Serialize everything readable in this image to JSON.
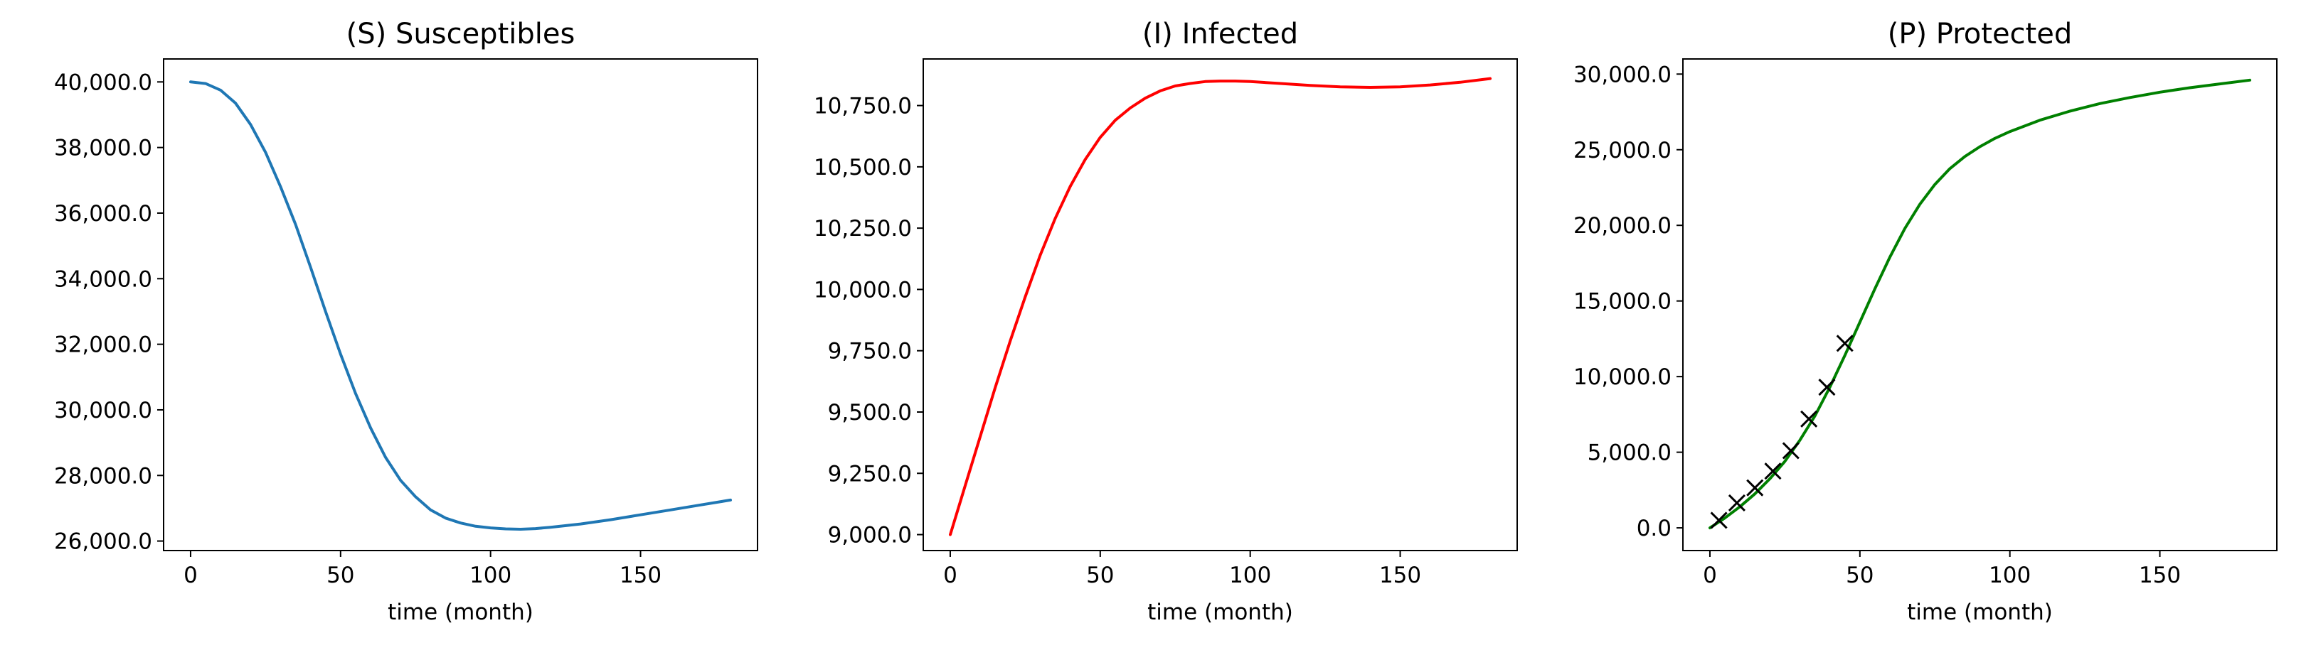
{
  "chart_data": [
    {
      "type": "line",
      "title": "(S) Susceptibles",
      "xlabel": "time (month)",
      "ylabel": "",
      "xlim": [
        -9,
        189
      ],
      "ylim": [
        25710,
        40700
      ],
      "xticks": [
        0,
        50,
        100,
        150
      ],
      "xtick_labels": [
        "0",
        "50",
        "100",
        "150"
      ],
      "yticks": [
        26000,
        28000,
        30000,
        32000,
        34000,
        36000,
        38000,
        40000
      ],
      "ytick_labels": [
        "26,000.0",
        "28,000.0",
        "30,000.0",
        "32,000.0",
        "34,000.0",
        "36,000.0",
        "38,000.0",
        "40,000.0"
      ],
      "grid": false,
      "series": [
        {
          "color": "#1f77b4",
          "x": [
            0,
            5,
            10,
            15,
            20,
            25,
            30,
            35,
            40,
            45,
            50,
            55,
            60,
            65,
            70,
            75,
            80,
            85,
            90,
            95,
            100,
            105,
            110,
            115,
            120,
            130,
            140,
            150,
            160,
            170,
            180
          ],
          "y": [
            40000,
            39950,
            39750,
            39350,
            38700,
            37850,
            36800,
            35650,
            34350,
            33000,
            31700,
            30500,
            29450,
            28550,
            27850,
            27350,
            26950,
            26700,
            26550,
            26450,
            26400,
            26370,
            26360,
            26380,
            26420,
            26520,
            26650,
            26800,
            26950,
            27100,
            27250
          ]
        }
      ]
    },
    {
      "type": "line",
      "title": "(I) Infected",
      "xlabel": "time (month)",
      "ylabel": "",
      "xlim": [
        -9,
        189
      ],
      "ylim": [
        8935,
        10940
      ],
      "xticks": [
        0,
        50,
        100,
        150
      ],
      "xtick_labels": [
        "0",
        "50",
        "100",
        "150"
      ],
      "yticks": [
        9000,
        9250,
        9500,
        9750,
        10000,
        10250,
        10500,
        10750
      ],
      "ytick_labels": [
        "9,000.0",
        "9,250.0",
        "9,500.0",
        "9,750.0",
        "10,000.0",
        "10,250.0",
        "10,500.0",
        "10,750.0"
      ],
      "grid": false,
      "series": [
        {
          "color": "#ff0000",
          "x": [
            0,
            5,
            10,
            15,
            20,
            25,
            30,
            35,
            40,
            45,
            50,
            55,
            60,
            65,
            70,
            75,
            80,
            85,
            90,
            95,
            100,
            110,
            120,
            130,
            140,
            150,
            160,
            170,
            180
          ],
          "y": [
            9000,
            9200,
            9400,
            9600,
            9790,
            9970,
            10140,
            10290,
            10420,
            10530,
            10620,
            10690,
            10740,
            10780,
            10810,
            10830,
            10840,
            10848,
            10850,
            10850,
            10848,
            10840,
            10832,
            10826,
            10824,
            10826,
            10834,
            10845,
            10860
          ]
        }
      ]
    },
    {
      "type": "line",
      "title": "(P) Protected",
      "xlabel": "time (month)",
      "ylabel": "",
      "xlim": [
        -9,
        189
      ],
      "ylim": [
        -1500,
        31000
      ],
      "xticks": [
        0,
        50,
        100,
        150
      ],
      "xtick_labels": [
        "0",
        "50",
        "100",
        "150"
      ],
      "yticks": [
        0,
        5000,
        10000,
        15000,
        20000,
        25000,
        30000
      ],
      "ytick_labels": [
        "0.0",
        "5,000.0",
        "10,000.0",
        "15,000.0",
        "20,000.0",
        "25,000.0",
        "30,000.0"
      ],
      "grid": false,
      "series": [
        {
          "color": "#008000",
          "x": [
            0,
            5,
            10,
            15,
            20,
            25,
            30,
            35,
            40,
            45,
            50,
            55,
            60,
            65,
            70,
            75,
            80,
            85,
            90,
            95,
            100,
            110,
            120,
            130,
            140,
            150,
            160,
            170,
            180
          ],
          "y": [
            0,
            650,
            1400,
            2250,
            3250,
            4400,
            5800,
            7400,
            9300,
            11400,
            13600,
            15800,
            17900,
            19800,
            21400,
            22700,
            23750,
            24550,
            25200,
            25750,
            26200,
            26950,
            27550,
            28050,
            28450,
            28800,
            29100,
            29350,
            29600
          ]
        }
      ],
      "markers": {
        "color": "#000000",
        "shape": "x",
        "x": [
          3,
          9,
          15,
          21,
          27,
          33,
          39,
          45
        ],
        "y": [
          500,
          1650,
          2650,
          3750,
          5100,
          7200,
          9300,
          12200
        ]
      }
    }
  ]
}
